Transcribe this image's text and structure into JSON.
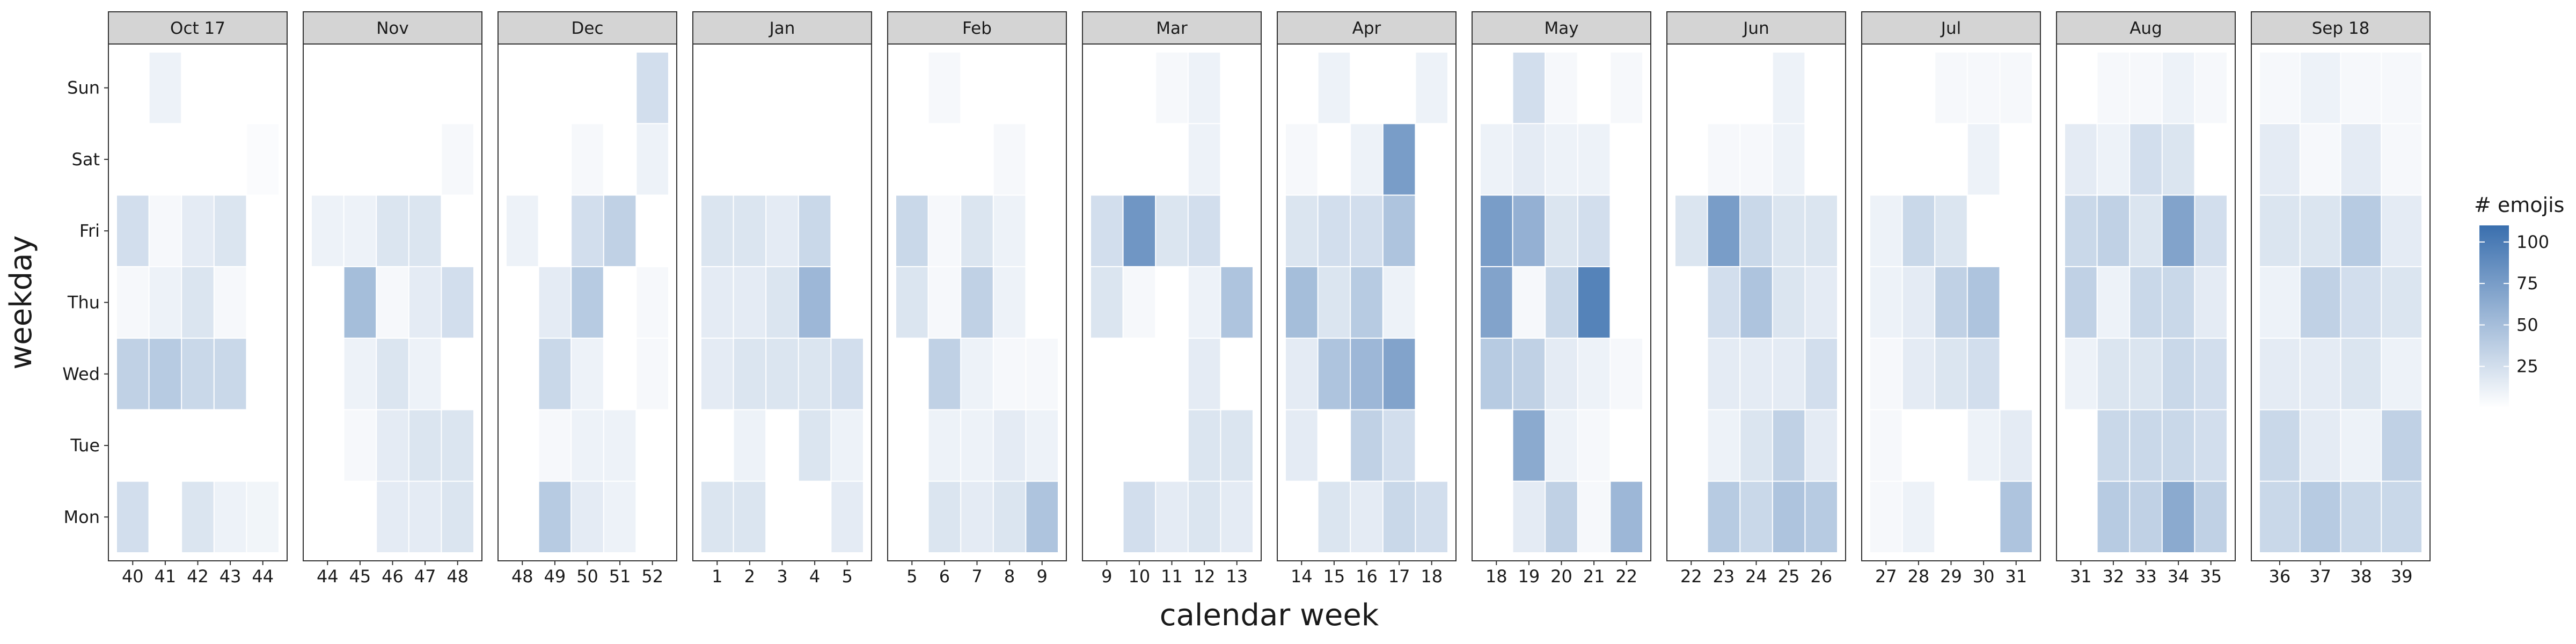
{
  "chart_data": {
    "type": "heatmap",
    "title": "",
    "xlabel": "calendar week",
    "ylabel": "weekday",
    "legend": {
      "title": "# emojis",
      "ticks": [
        25,
        50,
        75,
        100
      ],
      "range": [
        0,
        110
      ],
      "placement": "right"
    },
    "colors": {
      "low": "#ffffff",
      "high": "#3a6fae",
      "strip_bg": "#d4d4d4",
      "border": "#333333",
      "text": "#1a1a1a"
    },
    "weekdays": [
      "Mon",
      "Tue",
      "Wed",
      "Thu",
      "Fri",
      "Sat",
      "Sun"
    ],
    "facets": [
      {
        "label": "Oct 17",
        "weeks": [
          40,
          41,
          42,
          43,
          44
        ],
        "values": [
          [
            25,
            0,
            20,
            10,
            8
          ],
          [
            0,
            0,
            0,
            0,
            0
          ],
          [
            35,
            40,
            30,
            30,
            0
          ],
          [
            5,
            10,
            20,
            5,
            0
          ],
          [
            25,
            5,
            15,
            20,
            0
          ],
          [
            0,
            0,
            0,
            0,
            3
          ],
          [
            0,
            10,
            0,
            0,
            0
          ]
        ]
      },
      {
        "label": "Nov",
        "weeks": [
          44,
          45,
          46,
          47,
          48
        ],
        "values": [
          [
            0,
            0,
            15,
            15,
            20
          ],
          [
            0,
            5,
            15,
            20,
            20
          ],
          [
            0,
            10,
            20,
            10,
            0
          ],
          [
            0,
            50,
            5,
            15,
            25
          ],
          [
            10,
            10,
            20,
            20,
            0
          ],
          [
            0,
            0,
            0,
            0,
            5
          ],
          [
            0,
            0,
            0,
            0,
            0
          ]
        ]
      },
      {
        "label": "Dec",
        "weeks": [
          48,
          49,
          50,
          51,
          52
        ],
        "values": [
          [
            0,
            40,
            15,
            10,
            0
          ],
          [
            0,
            5,
            10,
            10,
            0
          ],
          [
            0,
            30,
            10,
            0,
            5
          ],
          [
            0,
            15,
            40,
            0,
            5
          ],
          [
            10,
            0,
            25,
            35,
            0
          ],
          [
            0,
            0,
            5,
            0,
            10
          ],
          [
            0,
            0,
            0,
            0,
            25
          ]
        ]
      },
      {
        "label": "Jan",
        "weeks": [
          1,
          2,
          3,
          4,
          5
        ],
        "values": [
          [
            20,
            20,
            0,
            0,
            15
          ],
          [
            0,
            10,
            0,
            20,
            10
          ],
          [
            15,
            20,
            20,
            20,
            25
          ],
          [
            15,
            15,
            20,
            55,
            0
          ],
          [
            20,
            20,
            15,
            30,
            0
          ],
          [
            0,
            0,
            0,
            0,
            0
          ],
          [
            0,
            0,
            0,
            0,
            0
          ]
        ]
      },
      {
        "label": "Feb",
        "weeks": [
          5,
          6,
          7,
          8,
          9
        ],
        "values": [
          [
            0,
            20,
            15,
            20,
            45
          ],
          [
            0,
            10,
            10,
            15,
            10
          ],
          [
            0,
            35,
            10,
            5,
            5
          ],
          [
            20,
            5,
            35,
            10,
            0
          ],
          [
            30,
            5,
            20,
            10,
            0
          ],
          [
            0,
            0,
            0,
            5,
            0
          ],
          [
            0,
            5,
            0,
            0,
            0
          ]
        ]
      },
      {
        "label": "Mar",
        "weeks": [
          9,
          10,
          11,
          12,
          13
        ],
        "values": [
          [
            0,
            25,
            15,
            20,
            15
          ],
          [
            0,
            0,
            0,
            20,
            20
          ],
          [
            0,
            0,
            0,
            15,
            0
          ],
          [
            20,
            5,
            0,
            10,
            45
          ],
          [
            25,
            80,
            20,
            25,
            0
          ],
          [
            0,
            0,
            0,
            10,
            0
          ],
          [
            0,
            0,
            5,
            10,
            0
          ]
        ]
      },
      {
        "label": "Apr",
        "weeks": [
          14,
          15,
          16,
          17,
          18
        ],
        "values": [
          [
            0,
            20,
            15,
            30,
            25
          ],
          [
            15,
            0,
            35,
            25,
            0
          ],
          [
            15,
            45,
            55,
            70,
            0
          ],
          [
            50,
            20,
            40,
            10,
            0
          ],
          [
            20,
            25,
            25,
            45,
            0
          ],
          [
            5,
            0,
            10,
            75,
            0
          ],
          [
            0,
            10,
            0,
            0,
            10
          ]
        ]
      },
      {
        "label": "May",
        "weeks": [
          18,
          19,
          20,
          21,
          22
        ],
        "values": [
          [
            0,
            15,
            35,
            5,
            55
          ],
          [
            0,
            65,
            10,
            5,
            0
          ],
          [
            40,
            35,
            15,
            10,
            5
          ],
          [
            70,
            5,
            30,
            95,
            0
          ],
          [
            75,
            60,
            20,
            25,
            0
          ],
          [
            10,
            15,
            10,
            10,
            0
          ],
          [
            0,
            25,
            5,
            0,
            5
          ]
        ]
      },
      {
        "label": "Jun",
        "weeks": [
          22,
          23,
          24,
          25,
          26
        ],
        "values": [
          [
            0,
            40,
            30,
            45,
            40
          ],
          [
            0,
            10,
            20,
            35,
            15
          ],
          [
            0,
            15,
            15,
            15,
            25
          ],
          [
            0,
            25,
            45,
            20,
            15
          ],
          [
            20,
            75,
            30,
            20,
            20
          ],
          [
            0,
            5,
            5,
            10,
            0
          ],
          [
            0,
            0,
            0,
            10,
            0
          ]
        ]
      },
      {
        "label": "Jul",
        "weeks": [
          27,
          28,
          29,
          30,
          31
        ],
        "values": [
          [
            5,
            10,
            0,
            0,
            45
          ],
          [
            5,
            0,
            0,
            10,
            15
          ],
          [
            5,
            15,
            20,
            25,
            0
          ],
          [
            10,
            15,
            35,
            45,
            0
          ],
          [
            10,
            30,
            20,
            0,
            0
          ],
          [
            0,
            0,
            0,
            10,
            0
          ],
          [
            0,
            0,
            5,
            5,
            5
          ]
        ]
      },
      {
        "label": "Aug",
        "weeks": [
          31,
          32,
          33,
          34,
          35
        ],
        "values": [
          [
            0,
            40,
            35,
            65,
            35
          ],
          [
            0,
            30,
            30,
            30,
            25
          ],
          [
            10,
            20,
            20,
            30,
            25
          ],
          [
            35,
            10,
            30,
            30,
            15
          ],
          [
            30,
            35,
            20,
            70,
            25
          ],
          [
            15,
            10,
            25,
            20,
            0
          ],
          [
            0,
            5,
            5,
            10,
            5
          ]
        ]
      },
      {
        "label": "Sep 18",
        "weeks": [
          36,
          37,
          38,
          39
        ],
        "values": [
          [
            30,
            40,
            30,
            30
          ],
          [
            30,
            15,
            10,
            35
          ],
          [
            15,
            15,
            20,
            10
          ],
          [
            10,
            35,
            25,
            20
          ],
          [
            20,
            20,
            40,
            15
          ],
          [
            15,
            5,
            15,
            5
          ],
          [
            5,
            10,
            5,
            5
          ]
        ]
      }
    ]
  }
}
